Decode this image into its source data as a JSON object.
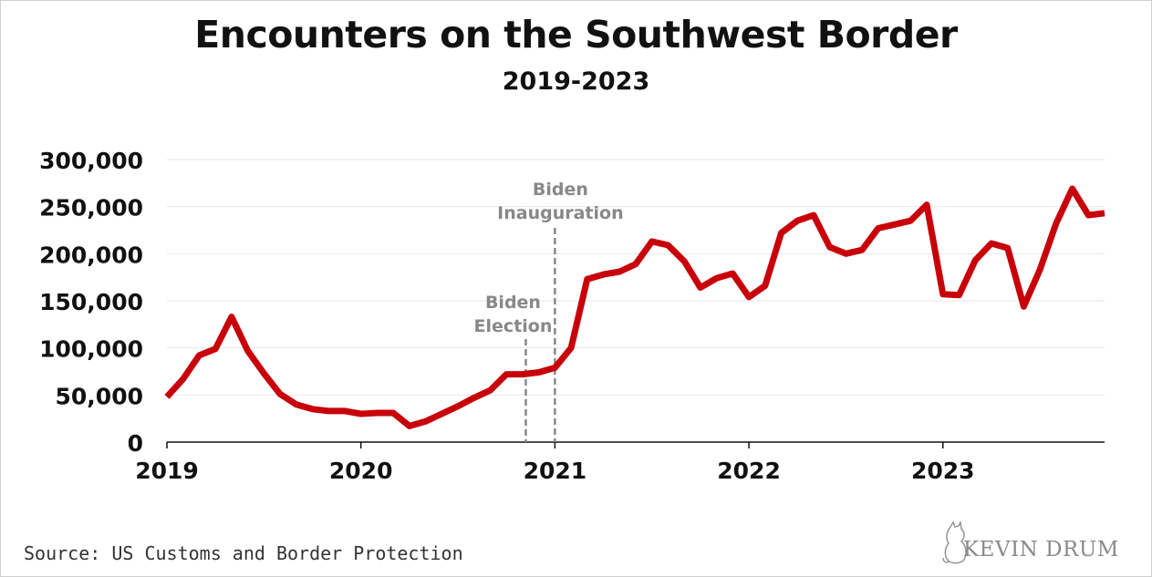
{
  "title": "Encounters on the Southwest Border",
  "subtitle": "2019-2023",
  "source": "Source: US Customs and Border Protection",
  "logo_text": "KEVIN DRUM",
  "colors": {
    "line": "#c8000a",
    "grid": "#e6e6e6",
    "annotation": "#888888",
    "axis": "#111111"
  },
  "icons": {
    "logo": "cat-icon"
  },
  "chart_data": {
    "type": "line",
    "title": "Encounters on the Southwest Border",
    "subtitle": "2019-2023",
    "xlabel": "",
    "ylabel": "",
    "ylim": [
      0,
      300000
    ],
    "yticks": [
      0,
      50000,
      100000,
      150000,
      200000,
      250000,
      300000
    ],
    "ytick_labels": [
      "0",
      "50,000",
      "100,000",
      "150,000",
      "200,000",
      "250,000",
      "300,000"
    ],
    "xlim": [
      "2019-01",
      "2023-11"
    ],
    "xticks": [
      "2019",
      "2020",
      "2021",
      "2022",
      "2023"
    ],
    "grid": "horizontal",
    "legend": "none",
    "series": [
      {
        "x": [
          "2019-01",
          "2019-02",
          "2019-03",
          "2019-04",
          "2019-05",
          "2019-06",
          "2019-07",
          "2019-08",
          "2019-09",
          "2019-10",
          "2019-11",
          "2019-12",
          "2020-01",
          "2020-02",
          "2020-03",
          "2020-04",
          "2020-05",
          "2020-06",
          "2020-07",
          "2020-08",
          "2020-09",
          "2020-10",
          "2020-11",
          "2020-12",
          "2021-01",
          "2021-02",
          "2021-03",
          "2021-04",
          "2021-05",
          "2021-06",
          "2021-07",
          "2021-08",
          "2021-09",
          "2021-10",
          "2021-11",
          "2021-12",
          "2022-01",
          "2022-02",
          "2022-03",
          "2022-04",
          "2022-05",
          "2022-06",
          "2022-07",
          "2022-08",
          "2022-09",
          "2022-10",
          "2022-11",
          "2022-12",
          "2023-01",
          "2023-02",
          "2023-03",
          "2023-04",
          "2023-05",
          "2023-06",
          "2023-07",
          "2023-08",
          "2023-09",
          "2023-10",
          "2023-11"
        ],
        "values": [
          48000,
          67000,
          92000,
          99000,
          133000,
          97000,
          73000,
          51000,
          40000,
          35000,
          33000,
          33000,
          30000,
          31000,
          31000,
          17000,
          22000,
          30000,
          38000,
          47000,
          55000,
          72000,
          72000,
          74000,
          79000,
          100000,
          173000,
          178000,
          181000,
          189000,
          213000,
          209000,
          192000,
          164000,
          174000,
          179000,
          154000,
          166000,
          222000,
          235000,
          241000,
          207000,
          200000,
          204000,
          227000,
          231000,
          235000,
          252000,
          157000,
          156000,
          193000,
          211000,
          206000,
          144000,
          183000,
          232000,
          269000,
          241000,
          243000
        ]
      }
    ],
    "annotations": [
      {
        "date": "2020-11",
        "lines": [
          "Biden",
          "Election"
        ]
      },
      {
        "date": "2021-01",
        "lines": [
          "Biden",
          "Inauguration"
        ]
      }
    ]
  }
}
